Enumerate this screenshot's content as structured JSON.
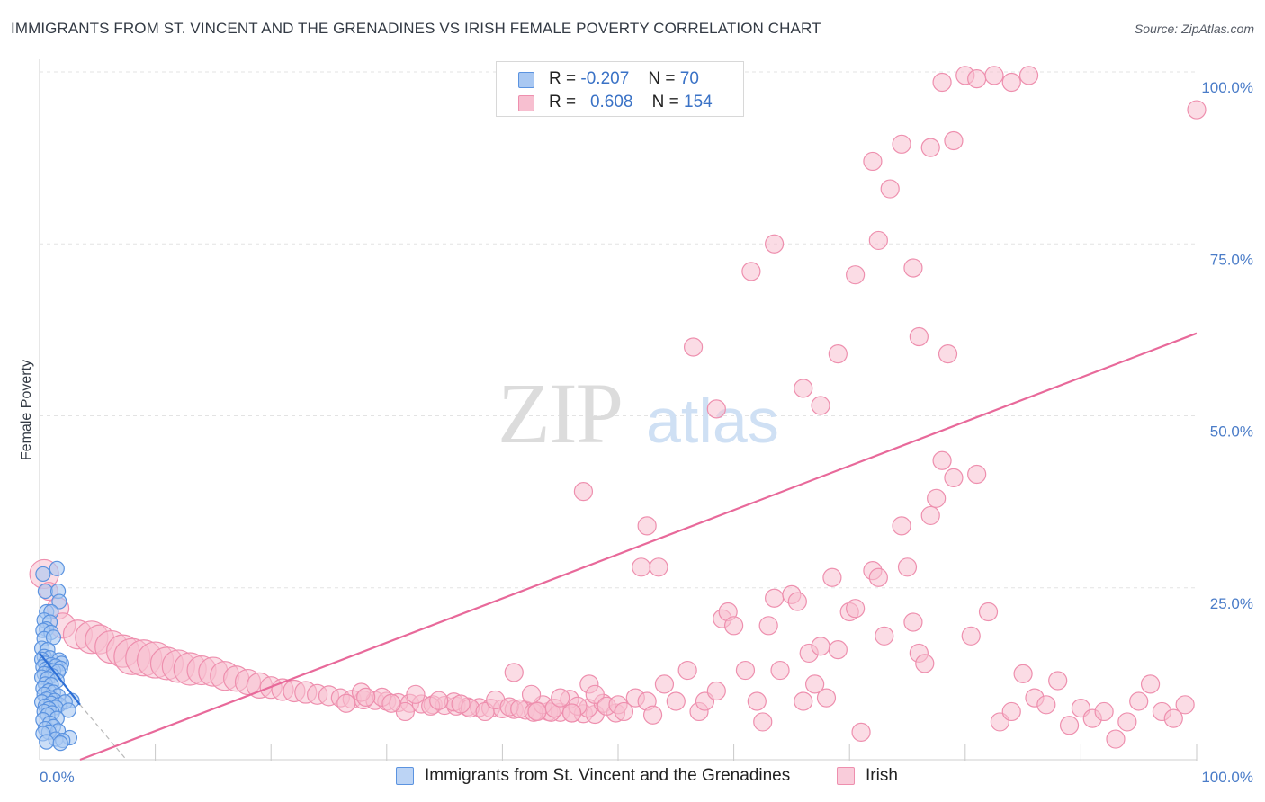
{
  "header": {
    "title": "IMMIGRANTS FROM ST. VINCENT AND THE GRENADINES VS IRISH FEMALE POVERTY CORRELATION CHART",
    "source": "Source: ZipAtlas.com"
  },
  "watermark": {
    "zip": "ZIP",
    "atlas": "atlas"
  },
  "legend": {
    "r_label": "R =",
    "n_label": "N =",
    "rows": [
      {
        "r": "-0.207",
        "n": "70"
      },
      {
        "r": "0.608",
        "n": "154"
      }
    ]
  },
  "bottom_legend": [
    {
      "label": "Immigrants from St. Vincent and the Grenadines"
    },
    {
      "label": "Irish"
    }
  ],
  "colors": {
    "blue_fill": "#a9c8f2",
    "blue_stroke": "#5b93e0",
    "blue_line": "#2d6fd6",
    "pink_fill": "#f7bfd0",
    "pink_stroke": "#ee8fae",
    "pink_line": "#e8699a",
    "grid": "#e3e3e3",
    "tick_text": "#4a7cc8"
  },
  "chart_data": {
    "type": "scatter",
    "title": "IMMIGRANTS FROM ST. VINCENT AND THE GRENADINES VS IRISH FEMALE POVERTY CORRELATION CHART",
    "xlabel": "",
    "ylabel": "Female Poverty",
    "xlim": [
      0,
      100
    ],
    "ylim": [
      0,
      100
    ],
    "x_tick_labels": [
      "0.0%",
      "100.0%"
    ],
    "y_ticks": [
      25,
      50,
      75,
      100
    ],
    "y_tick_labels": [
      "25.0%",
      "50.0%",
      "75.0%",
      "100.0%"
    ],
    "grid": true,
    "legend_position": "top-center",
    "series": [
      {
        "name": "Immigrants from St. Vincent and the Grenadines",
        "r": -0.207,
        "n": 70,
        "trend": {
          "x": [
            0,
            3.5
          ],
          "y": [
            15.5,
            8.0
          ],
          "dashed_x_end": 7.5,
          "dashed_y_end": 0
        },
        "points": [
          [
            0.3,
            27
          ],
          [
            1.5,
            27.8
          ],
          [
            0.5,
            24.5
          ],
          [
            1.6,
            24.5
          ],
          [
            1.7,
            23
          ],
          [
            0.6,
            21.5
          ],
          [
            1.0,
            21.5
          ],
          [
            0.4,
            20.3
          ],
          [
            0.9,
            20.0
          ],
          [
            0.6,
            19.0
          ],
          [
            0.3,
            18.8
          ],
          [
            1.0,
            18.5
          ],
          [
            0.4,
            17.6
          ],
          [
            1.2,
            17.8
          ],
          [
            0.2,
            16.2
          ],
          [
            0.7,
            16.0
          ],
          [
            0.4,
            15.0
          ],
          [
            0.9,
            14.8
          ],
          [
            0.2,
            14.6
          ],
          [
            1.7,
            14.5
          ],
          [
            1.9,
            14.0
          ],
          [
            0.5,
            14.0
          ],
          [
            1.0,
            13.8
          ],
          [
            1.4,
            13.6
          ],
          [
            0.3,
            13.5
          ],
          [
            1.8,
            13.3
          ],
          [
            0.6,
            13.2
          ],
          [
            0.9,
            13.0
          ],
          [
            1.2,
            12.9
          ],
          [
            1.6,
            12.8
          ],
          [
            0.4,
            12.5
          ],
          [
            1.1,
            12.2
          ],
          [
            0.2,
            12.0
          ],
          [
            0.7,
            11.8
          ],
          [
            1.5,
            11.5
          ],
          [
            0.5,
            11.0
          ],
          [
            1.0,
            10.9
          ],
          [
            0.3,
            10.4
          ],
          [
            0.8,
            10.0
          ],
          [
            1.2,
            9.8
          ],
          [
            0.4,
            9.5
          ],
          [
            1.6,
            9.3
          ],
          [
            0.9,
            9.0
          ],
          [
            0.6,
            8.8
          ],
          [
            1.3,
            8.6
          ],
          [
            2.8,
            8.6
          ],
          [
            0.2,
            8.4
          ],
          [
            1.0,
            8.2
          ],
          [
            1.7,
            8.0
          ],
          [
            2.2,
            8.4
          ],
          [
            0.5,
            7.8
          ],
          [
            1.4,
            7.6
          ],
          [
            0.8,
            7.4
          ],
          [
            2.5,
            7.2
          ],
          [
            0.4,
            7.0
          ],
          [
            1.1,
            6.8
          ],
          [
            0.7,
            6.5
          ],
          [
            1.5,
            6.0
          ],
          [
            0.3,
            5.8
          ],
          [
            0.9,
            5.3
          ],
          [
            1.2,
            4.8
          ],
          [
            0.5,
            4.5
          ],
          [
            1.6,
            4.2
          ],
          [
            0.8,
            4.0
          ],
          [
            0.3,
            3.8
          ],
          [
            2.6,
            3.2
          ],
          [
            1.4,
            3.0
          ],
          [
            2.0,
            2.8
          ],
          [
            0.6,
            2.6
          ],
          [
            1.8,
            2.4
          ]
        ]
      },
      {
        "name": "Irish",
        "r": 0.608,
        "n": 154,
        "trend": {
          "x": [
            3.5,
            100
          ],
          "y": [
            0,
            62
          ]
        },
        "points": [
          [
            0.4,
            27,
            16
          ],
          [
            0.8,
            24.5,
            10
          ],
          [
            1.6,
            22.0,
            12
          ],
          [
            2.0,
            19.5,
            14
          ],
          [
            3.3,
            18.2,
            16
          ],
          [
            4.5,
            17.8,
            18
          ],
          [
            5.2,
            17.5,
            16
          ],
          [
            6.2,
            16.4,
            18
          ],
          [
            7.2,
            15.8,
            18
          ],
          [
            8.0,
            15.0,
            20
          ],
          [
            9.0,
            14.8,
            20
          ],
          [
            10.0,
            14.5,
            20
          ],
          [
            11.0,
            14.0,
            18
          ],
          [
            12.0,
            13.6,
            18
          ],
          [
            13.0,
            13.2,
            18
          ],
          [
            14.0,
            13.0,
            16
          ],
          [
            15.0,
            12.8,
            16
          ],
          [
            16.0,
            12.2,
            16
          ],
          [
            17.0,
            11.8,
            14
          ],
          [
            18.0,
            11.3,
            14
          ],
          [
            19.0,
            10.8,
            14
          ],
          [
            20.0,
            10.5,
            12
          ],
          [
            21.0,
            10.2,
            12
          ],
          [
            22.0,
            10.0,
            12
          ],
          [
            23.0,
            9.8,
            12
          ],
          [
            24.0,
            9.5,
            11
          ],
          [
            25.0,
            9.3,
            11
          ],
          [
            26.0,
            9.0,
            10
          ],
          [
            27.0,
            8.8,
            10
          ],
          [
            28.0,
            8.7,
            10
          ],
          [
            29.0,
            8.6,
            10
          ],
          [
            30.0,
            8.5,
            10
          ],
          [
            31.0,
            8.3,
            10
          ],
          [
            32.0,
            8.2,
            10
          ],
          [
            33.0,
            8.1,
            10
          ],
          [
            34.0,
            8.0,
            10
          ],
          [
            35.0,
            7.9,
            10
          ],
          [
            36.0,
            7.8,
            10
          ],
          [
            37.0,
            7.7,
            10
          ],
          [
            38.0,
            7.6,
            10
          ],
          [
            39.0,
            7.5,
            10
          ],
          [
            40.0,
            7.4,
            10
          ],
          [
            41.0,
            7.3,
            10
          ],
          [
            42.0,
            7.2,
            10
          ],
          [
            43.0,
            7.1,
            10
          ],
          [
            44.0,
            7.0,
            10
          ],
          [
            45.0,
            6.9,
            10
          ],
          [
            46.0,
            6.8,
            10
          ],
          [
            47.0,
            6.7,
            10
          ],
          [
            48.0,
            6.6,
            10
          ],
          [
            26.5,
            8.2,
            10
          ],
          [
            27.8,
            9.8,
            10
          ],
          [
            29.6,
            9.1,
            10
          ],
          [
            31.6,
            7.0,
            10
          ],
          [
            32.5,
            9.5,
            10
          ],
          [
            33.8,
            7.8,
            10
          ],
          [
            35.8,
            8.4,
            10
          ],
          [
            37.2,
            7.5,
            10
          ],
          [
            38.5,
            7.0,
            10
          ],
          [
            39.4,
            8.7,
            10
          ],
          [
            40.6,
            7.7,
            10
          ],
          [
            41.5,
            7.4,
            10
          ],
          [
            42.7,
            6.9,
            10
          ],
          [
            44.2,
            6.9,
            10
          ],
          [
            45.8,
            8.8,
            10
          ],
          [
            47.4,
            7.5,
            10
          ],
          [
            48.7,
            8.2,
            10
          ],
          [
            49.8,
            6.8,
            10
          ],
          [
            34.5,
            8.6,
            10
          ],
          [
            36.4,
            8.1,
            10
          ],
          [
            30.4,
            8.2,
            10
          ],
          [
            28.2,
            9.1,
            10
          ],
          [
            43.5,
            8.0,
            10
          ],
          [
            46.5,
            7.8,
            10
          ],
          [
            41.0,
            12.7,
            10
          ],
          [
            42.5,
            9.5,
            10
          ],
          [
            43.0,
            7.0,
            10
          ],
          [
            44.5,
            7.5,
            10
          ],
          [
            45.0,
            9.0,
            10
          ],
          [
            46.0,
            6.8,
            10
          ],
          [
            47.5,
            11.0,
            10
          ],
          [
            48.0,
            9.5,
            10
          ],
          [
            49.0,
            7.8,
            10
          ],
          [
            50.0,
            8.0,
            10
          ],
          [
            50.5,
            7.0,
            10
          ],
          [
            51.5,
            9.0,
            10
          ],
          [
            52.5,
            8.5,
            10
          ],
          [
            53.0,
            6.5,
            10
          ],
          [
            54.0,
            11.0,
            10
          ],
          [
            55.0,
            8.5,
            10
          ],
          [
            56.0,
            13.0,
            10
          ],
          [
            57.0,
            7.0,
            10
          ],
          [
            57.5,
            8.5,
            10
          ],
          [
            58.5,
            10.0,
            10
          ],
          [
            59.0,
            20.5,
            10
          ],
          [
            59.5,
            21.5,
            10
          ],
          [
            60.0,
            19.5,
            10
          ],
          [
            61.0,
            13.0,
            10
          ],
          [
            62.0,
            8.5,
            10
          ],
          [
            62.5,
            5.5,
            10
          ],
          [
            63.0,
            19.5,
            10
          ],
          [
            63.5,
            23.5,
            10
          ],
          [
            64.0,
            13.0,
            10
          ],
          [
            65.0,
            24.0,
            10
          ],
          [
            65.5,
            23.0,
            10
          ],
          [
            66.0,
            8.5,
            10
          ],
          [
            66.5,
            15.5,
            10
          ],
          [
            67.0,
            11.0,
            10
          ],
          [
            67.5,
            16.5,
            10
          ],
          [
            68.0,
            9.0,
            10
          ],
          [
            68.5,
            26.5,
            10
          ],
          [
            69.0,
            16.0,
            10
          ],
          [
            70.0,
            21.5,
            10
          ],
          [
            70.5,
            22.0,
            10
          ],
          [
            71.0,
            4.0,
            10
          ],
          [
            72.0,
            27.5,
            10
          ],
          [
            72.5,
            26.5,
            10
          ],
          [
            73.0,
            18.0,
            10
          ],
          [
            74.5,
            34.0,
            10
          ],
          [
            75.0,
            28.0,
            10
          ],
          [
            75.5,
            20.0,
            10
          ],
          [
            76.0,
            15.5,
            10
          ],
          [
            76.5,
            14.0,
            10
          ],
          [
            77.0,
            35.5,
            10
          ],
          [
            77.5,
            38.0,
            10
          ],
          [
            78.0,
            43.5,
            10
          ],
          [
            78.5,
            59.0,
            10
          ],
          [
            79.0,
            41.0,
            10
          ],
          [
            80.5,
            18.0,
            10
          ],
          [
            81.0,
            41.5,
            10
          ],
          [
            82.0,
            21.5,
            10
          ],
          [
            83.0,
            5.5,
            10
          ],
          [
            84.0,
            7.0,
            10
          ],
          [
            85.0,
            12.5,
            10
          ],
          [
            86.0,
            9.0,
            10
          ],
          [
            87.0,
            8.0,
            10
          ],
          [
            88.0,
            11.5,
            10
          ],
          [
            89.0,
            5.0,
            10
          ],
          [
            90.0,
            7.5,
            10
          ],
          [
            91.0,
            6.0,
            10
          ],
          [
            92.0,
            7.0,
            10
          ],
          [
            93.0,
            3.0,
            10
          ],
          [
            94.0,
            5.5,
            10
          ],
          [
            95.0,
            8.5,
            10
          ],
          [
            96.0,
            11.0,
            10
          ],
          [
            97.0,
            7.0,
            10
          ],
          [
            98.0,
            6.0,
            10
          ],
          [
            99.0,
            8.0,
            10
          ],
          [
            47.0,
            39.0,
            10
          ],
          [
            52.0,
            28.0,
            10
          ],
          [
            53.5,
            28.0,
            10
          ],
          [
            52.5,
            34.0,
            10
          ],
          [
            56.5,
            60.0,
            10
          ],
          [
            58.5,
            51.0,
            10
          ],
          [
            61.5,
            71.0,
            10
          ],
          [
            63.5,
            75.0,
            10
          ],
          [
            66.0,
            54.0,
            10
          ],
          [
            67.5,
            51.5,
            10
          ],
          [
            69.0,
            59.0,
            10
          ],
          [
            70.5,
            70.5,
            10
          ],
          [
            72.0,
            87.0,
            10
          ],
          [
            72.5,
            75.5,
            10
          ],
          [
            73.5,
            83.0,
            10
          ],
          [
            74.5,
            89.5,
            10
          ],
          [
            75.5,
            71.5,
            10
          ],
          [
            76.0,
            61.5,
            10
          ],
          [
            77.0,
            89.0,
            10
          ],
          [
            78.0,
            98.5,
            10
          ],
          [
            79.0,
            90.0,
            10
          ],
          [
            80.0,
            99.5,
            10
          ],
          [
            81.0,
            99.0,
            10
          ],
          [
            82.5,
            99.5,
            10
          ],
          [
            84.0,
            98.5,
            10
          ],
          [
            85.5,
            99.5,
            10
          ],
          [
            100.0,
            94.5,
            10
          ]
        ]
      }
    ]
  }
}
